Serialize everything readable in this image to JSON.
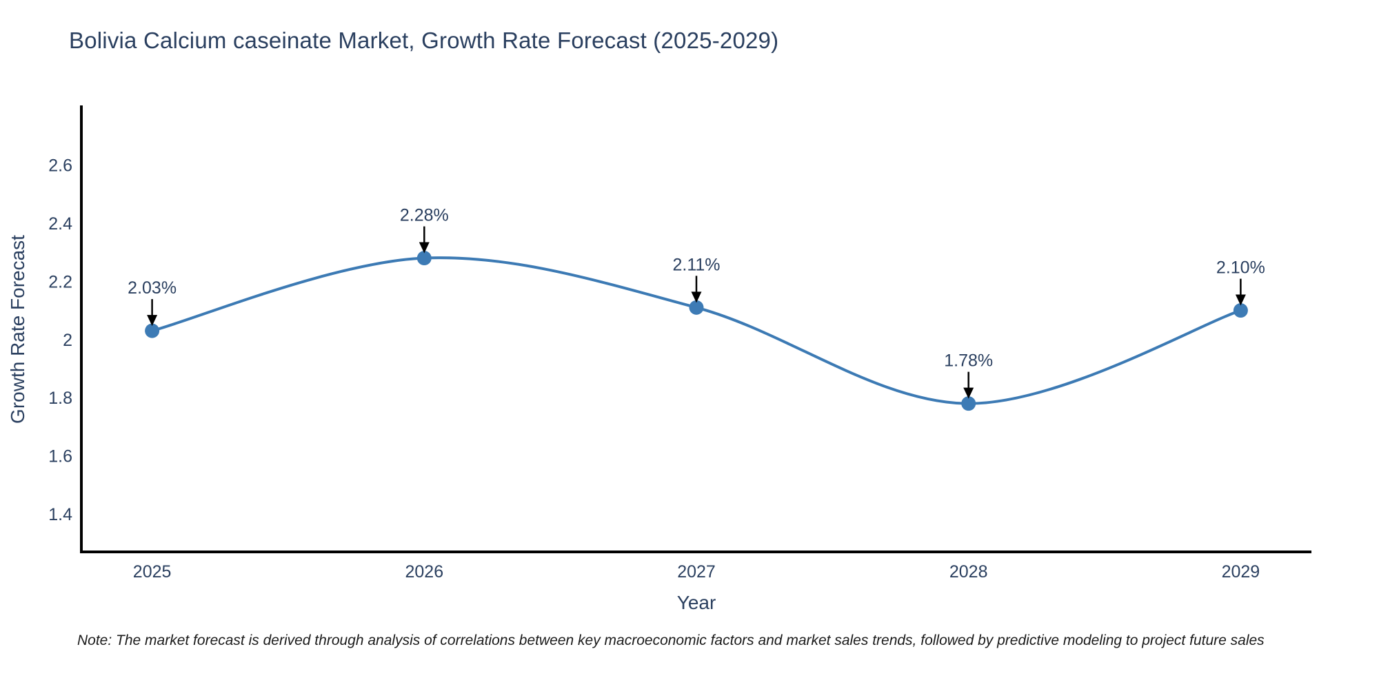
{
  "note": "Note: The market forecast is derived through analysis of correlations between key macroeconomic factors and market sales trends, followed by predictive modeling to project future sales",
  "chart_data": {
    "type": "line",
    "title": "Bolivia Calcium caseinate Market, Growth Rate Forecast (2025-2029)",
    "xlabel": "Year",
    "ylabel": "Growth Rate Forecast",
    "x": [
      2025,
      2026,
      2027,
      2028,
      2029
    ],
    "series": [
      {
        "name": "Growth Rate Forecast",
        "values": [
          2.03,
          2.28,
          2.11,
          1.78,
          2.1
        ]
      }
    ],
    "point_labels": [
      "2.03%",
      "2.28%",
      "2.11%",
      "1.78%",
      "2.10%"
    ],
    "x_tick_labels": [
      "2025",
      "2026",
      "2027",
      "2028",
      "2029"
    ],
    "x_tick_values": [
      2025,
      2026,
      2027,
      2028,
      2029
    ],
    "y_tick_labels": [
      "2.6",
      "2.4",
      "2.2",
      "2",
      "1.8",
      "1.6",
      "1.4"
    ],
    "y_tick_values": [
      2.6,
      2.4,
      2.2,
      2.0,
      1.8,
      1.6,
      1.4
    ],
    "xlim": [
      2024.74,
      2029.26
    ],
    "ylim": [
      1.27,
      2.8
    ],
    "grid": false,
    "legend": "none",
    "line_shape": "spline",
    "annotation_style": "label-above-with-down-arrow",
    "colors": {
      "line": "#3c7ab4",
      "marker": "#3d7bb5",
      "axis": "#000000",
      "text": "#2a3f5f",
      "note_text": "#1a1a1a",
      "annotation_arrow": "#000000",
      "background": "#ffffff"
    }
  }
}
